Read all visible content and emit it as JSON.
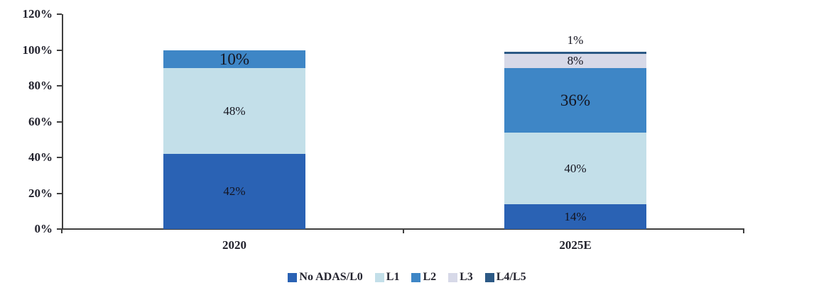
{
  "chart_data": {
    "type": "bar",
    "subtype": "stacked-percent",
    "title": "",
    "categories": [
      "2020",
      "2025E"
    ],
    "series": [
      {
        "name": "No ADAS/L0",
        "color": "#2A62B4",
        "values": [
          42,
          14
        ]
      },
      {
        "name": "L1",
        "color": "#C3DFE9",
        "values": [
          48,
          40
        ]
      },
      {
        "name": "L2",
        "color": "#3E86C6",
        "values": [
          10,
          36
        ]
      },
      {
        "name": "L3",
        "color": "#D7D9E8",
        "values": [
          0,
          8
        ]
      },
      {
        "name": "L4/L5",
        "color": "#2C5985",
        "values": [
          0,
          1
        ]
      }
    ],
    "bars": [
      {
        "category": "2020",
        "segments": [
          {
            "series": "No ADAS/L0",
            "value": 42,
            "label": "42%"
          },
          {
            "series": "L1",
            "value": 48,
            "label": "48%"
          },
          {
            "series": "L2",
            "value": 10,
            "label": "10%",
            "emphasis": true
          }
        ]
      },
      {
        "category": "2025E",
        "segments": [
          {
            "series": "No ADAS/L0",
            "value": 14,
            "label": "14%"
          },
          {
            "series": "L1",
            "value": 40,
            "label": "40%"
          },
          {
            "series": "L2",
            "value": 36,
            "label": "36%",
            "emphasis": true
          },
          {
            "series": "L3",
            "value": 8,
            "label": "8%"
          },
          {
            "series": "L4/L5",
            "value": 1,
            "label": "1%",
            "outside": true
          }
        ]
      }
    ],
    "y_axis": {
      "tick_labels": [
        "0%",
        "20%",
        "40%",
        "60%",
        "80%",
        "100%",
        "120%"
      ],
      "tick_values": [
        0,
        20,
        40,
        60,
        80,
        100,
        120
      ],
      "ylim": [
        0,
        120
      ]
    },
    "xlabel": "",
    "ylabel": "",
    "grid": false,
    "legend": {
      "position": "bottom",
      "entries": [
        "No ADAS/L0",
        "L1",
        "L2",
        "L3",
        "L4/L5"
      ]
    }
  },
  "colors": {
    "axis": "#3f3f3f",
    "label_text": "#14141f",
    "tick_text": "#23232e"
  }
}
